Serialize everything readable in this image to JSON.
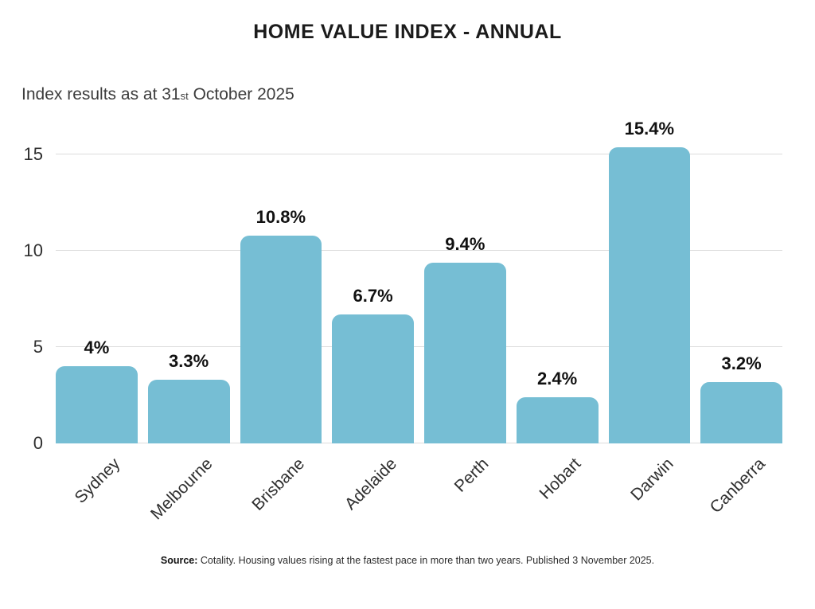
{
  "title": "HOME VALUE INDEX - ANNUAL",
  "subtitle": {
    "prefix": "Index results as at 31",
    "ordinal": "st",
    "suffix": " October 2025"
  },
  "footer": {
    "source_label": "Source:",
    "text": " Cotality. Housing values rising at the fastest pace in more than two years. Published 3 November 2025."
  },
  "colors": {
    "bar": "#76bed4",
    "gridline": "#dcdcdc",
    "title_text": "#1b1b1b",
    "value_label": "#111111"
  },
  "chart_data": {
    "type": "bar",
    "title": "HOME VALUE INDEX - ANNUAL",
    "subtitle": "Index results as at 31st October 2025",
    "categories": [
      "Sydney",
      "Melbourne",
      "Brisbane",
      "Adelaide",
      "Perth",
      "Hobart",
      "Darwin",
      "Canberra"
    ],
    "values": [
      4,
      3.3,
      10.8,
      6.7,
      9.4,
      2.4,
      15.4,
      3.2
    ],
    "value_labels": [
      "4%",
      "3.3%",
      "10.8%",
      "6.7%",
      "9.4%",
      "2.4%",
      "15.4%",
      "3.2%"
    ],
    "xlabel": "",
    "ylabel": "",
    "ylim": [
      0,
      16
    ],
    "yticks": [
      0,
      5,
      10,
      15
    ],
    "grid": true,
    "legend": false,
    "bar_color": "#76bed4",
    "xtick_rotation": -45,
    "annotation": "Source: Cotality. Housing values rising at the fastest pace in more than two years. Published 3 November 2025."
  }
}
